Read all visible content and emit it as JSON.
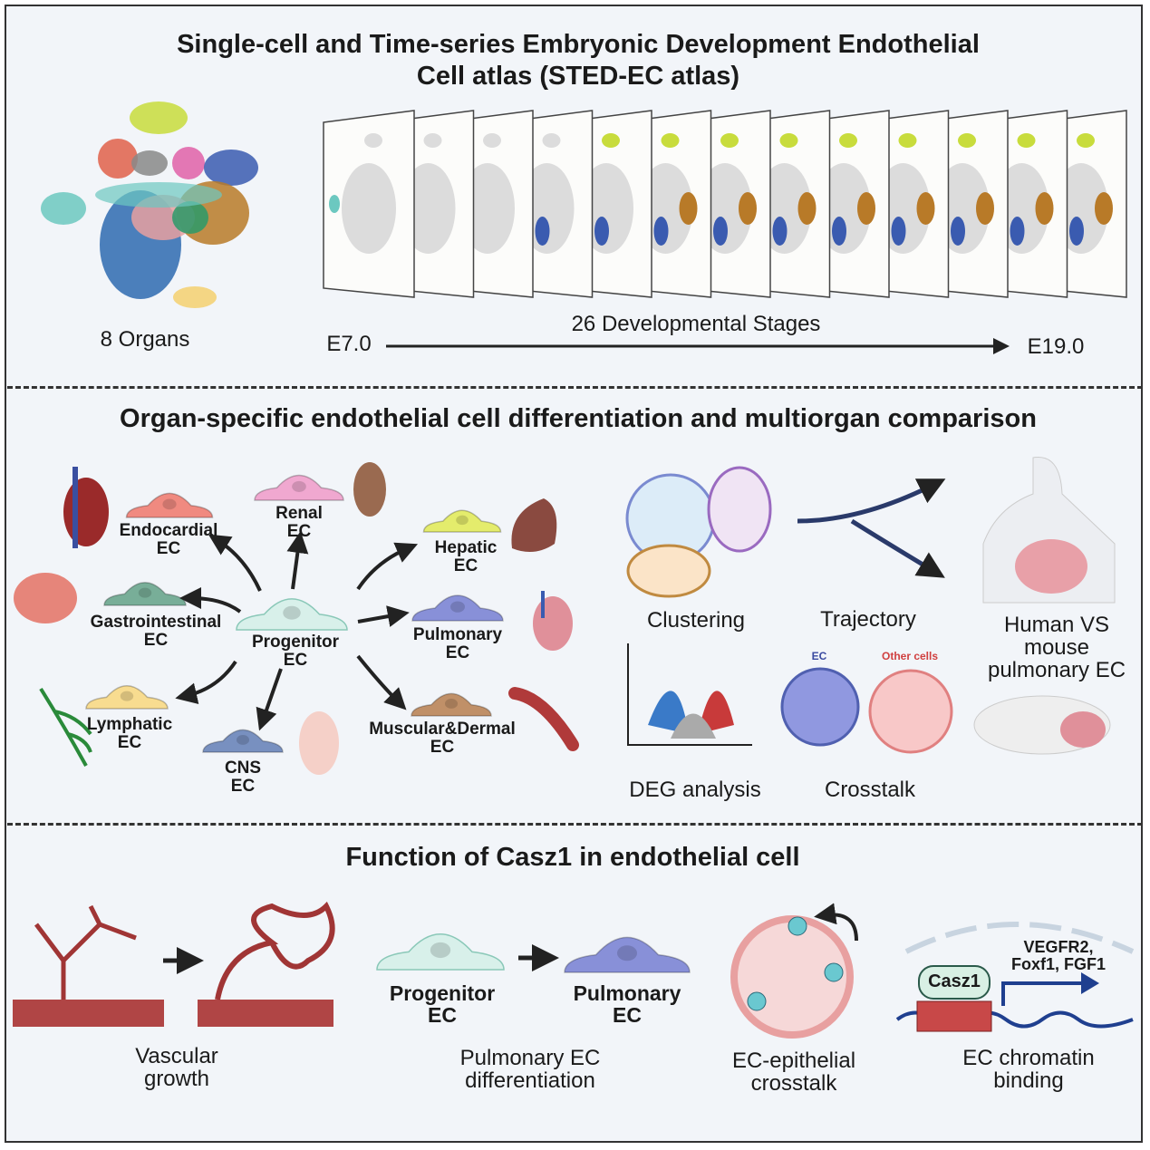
{
  "atlas": {
    "title_line1": "Single-cell and Time-series Embryonic Development Endothelial",
    "title_line2": "Cell atlas (STED-EC atlas)",
    "organs_label": "8 Organs",
    "stages_label": "26 Developmental Stages",
    "start_stage": "E7.0",
    "end_stage": "E19.0",
    "cluster_colors": [
      "#c8dc3c",
      "#e0604a",
      "#888888",
      "#e060a8",
      "#3a5bb0",
      "#6cc8c0",
      "#b87a28",
      "#2e6ab0",
      "#e8a0a0",
      "#2a9a6a",
      "#f5d070"
    ]
  },
  "differentiation": {
    "title": "Organ-specific endothelial cell differentiation and multiorgan comparison",
    "progenitor": {
      "line1": "Progenitor",
      "line2": "EC",
      "color": "#d8f0ea"
    },
    "cells": [
      {
        "line1": "Endocardial",
        "line2": "EC",
        "color": "#f08a80"
      },
      {
        "line1": "Renal",
        "line2": "EC",
        "color": "#f0a8d0"
      },
      {
        "line1": "Hepatic",
        "line2": "EC",
        "color": "#e4ec6c"
      },
      {
        "line1": "Gastrointestinal",
        "line2": "EC",
        "color": "#78ae98"
      },
      {
        "line1": "Pulmonary",
        "line2": "EC",
        "color": "#8890d8"
      },
      {
        "line1": "Lymphatic",
        "line2": "EC",
        "color": "#f8dc90"
      },
      {
        "line1": "CNS",
        "line2": "EC",
        "color": "#7890c0"
      },
      {
        "line1": "Muscular&Dermal",
        "line2": "EC",
        "color": "#c09068"
      }
    ],
    "analyses": {
      "clustering": "Clustering",
      "trajectory": "Trajectory",
      "deg": "DEG analysis",
      "crosstalk": "Crosstalk",
      "crosstalk_ec": "EC",
      "crosstalk_other": "Other cells",
      "comparison_line1": "Human VS",
      "comparison_line2": "mouse",
      "comparison_line3": "pulmonary EC"
    }
  },
  "casz1": {
    "title": "Function of Casz1 in endothelial cell",
    "progenitor_line1": "Progenitor",
    "progenitor_line2": "EC",
    "pulmonary_line1": "Pulmonary",
    "pulmonary_line2": "EC",
    "protein": "Casz1",
    "targets_line1": "VEGFR2,",
    "targets_line2": "Foxf1, FGF1",
    "panels": [
      {
        "line1": "Vascular",
        "line2": "growth"
      },
      {
        "line1": "Pulmonary EC",
        "line2": "differentiation"
      },
      {
        "line1": "EC-epithelial",
        "line2": "crosstalk"
      },
      {
        "line1": "EC chromatin",
        "line2": "binding"
      }
    ]
  }
}
